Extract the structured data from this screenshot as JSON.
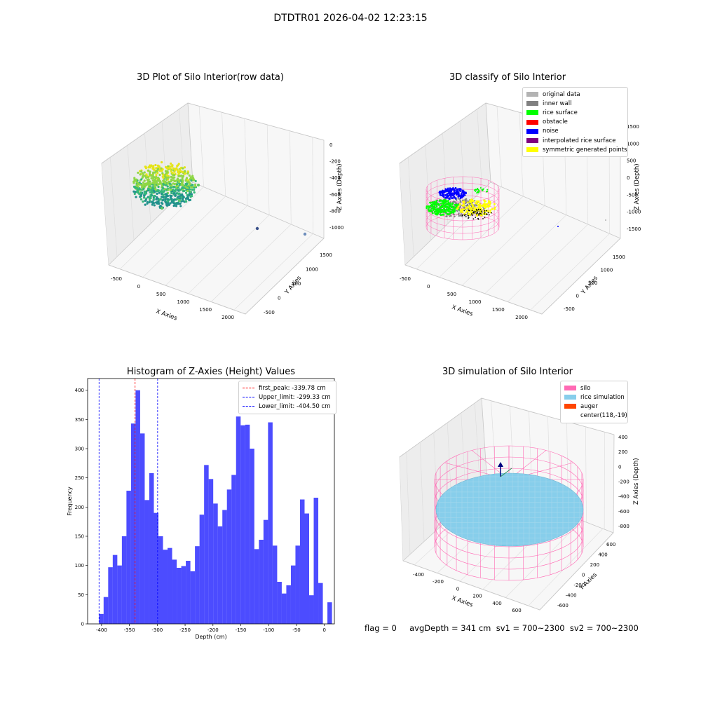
{
  "figure": {
    "suptitle": "DTDTR01 2026-04-02 12:23:15",
    "status_text": "flag = 0     avgDepth = 341 cm  sv1 = 700~2300  sv2 = 700~2300"
  },
  "panel1": {
    "title": "3D Plot of Silo Interior(row data)",
    "xlabel": "X Axies",
    "ylabel": "Y Axies",
    "zlabel": "Z Axies (Depth)",
    "xticks": [
      "-500",
      "0",
      "500",
      "1000",
      "1500",
      "2000"
    ],
    "yticks": [
      "-500",
      "0",
      "500",
      "1000",
      "1500"
    ],
    "zticks": [
      "0",
      "-200",
      "-400",
      "-600",
      "-800",
      "-1000"
    ]
  },
  "panel2": {
    "title": "3D classify of Silo Interior",
    "xlabel": "X Axies",
    "ylabel": "Y Axies",
    "zlabel": "Z Axies (Depth)",
    "xticks": [
      "-500",
      "0",
      "500",
      "1000",
      "1500",
      "2000"
    ],
    "yticks": [
      "-500",
      "0",
      "500",
      "1000",
      "1500"
    ],
    "zticks": [
      "1500",
      "1000",
      "500",
      "0",
      "-500",
      "-1000",
      "-1500"
    ],
    "legend": [
      {
        "label": "original data",
        "color": "#b3b3b3"
      },
      {
        "label": "inner wall",
        "color": "#808080"
      },
      {
        "label": "rice surface",
        "color": "#00ff00"
      },
      {
        "label": "obstacle",
        "color": "#ff0000"
      },
      {
        "label": "noise",
        "color": "#0000ff"
      },
      {
        "label": "interpolated rice surface",
        "color": "#800080"
      },
      {
        "label": "symmetric generated points",
        "color": "#ffff00"
      }
    ]
  },
  "panel4": {
    "title": "3D simulation of Silo Interior",
    "xlabel": "X Axies",
    "ylabel": "Y Axies",
    "zlabel": "Z Axies (Depth)",
    "xticks": [
      "-400",
      "-200",
      "0",
      "200",
      "400",
      "600"
    ],
    "yticks": [
      "600",
      "400",
      "200",
      "0",
      "-200",
      "-400",
      "-600"
    ],
    "zticks": [
      "400",
      "200",
      "0",
      "-200",
      "-400",
      "-600",
      "-800"
    ],
    "legend": [
      {
        "label": "silo",
        "color": "#ff69b4"
      },
      {
        "label": "rice simulation",
        "color": "#87ceeb"
      },
      {
        "label": "auger",
        "color": "#ff4500"
      },
      {
        "label": "center(118,-19)",
        "color": ""
      }
    ]
  },
  "chart_data": [
    {
      "type": "histogram",
      "title": "Histogram of Z-Axies (Height) Values",
      "xlabel": "Depth (cm)",
      "ylabel": "Frequency",
      "xlim": [
        -425,
        18
      ],
      "ylim": [
        0,
        420
      ],
      "xticks": [
        "-400",
        "-350",
        "-300",
        "-250",
        "-200",
        "-150",
        "-100",
        "-50",
        "0"
      ],
      "yticks": [
        "0",
        "50",
        "100",
        "150",
        "200",
        "250",
        "300",
        "350",
        "400"
      ],
      "bin_start": -404.5,
      "bin_width": 8.2,
      "values": [
        17,
        46,
        97,
        118,
        100,
        150,
        228,
        343,
        400,
        326,
        212,
        258,
        190,
        150,
        127,
        130,
        110,
        96,
        99,
        108,
        90,
        133,
        187,
        272,
        248,
        206,
        167,
        195,
        230,
        255,
        355,
        340,
        341,
        300,
        128,
        144,
        178,
        345,
        134,
        72,
        52,
        66,
        100,
        134,
        213,
        189,
        49,
        216,
        70,
        0,
        37
      ],
      "bar_color": "#0000ff",
      "vlines": [
        {
          "label": "first_peak: -339.78 cm",
          "x": -339.78,
          "color": "#ff0000"
        },
        {
          "label": "Upper_limit: -299.33 cm",
          "x": -299.33,
          "color": "#0000ff"
        },
        {
          "label": "Lower_limit: -404.50 cm",
          "x": -404.5,
          "color": "#0000ff"
        }
      ],
      "legend_position": "upper right"
    }
  ]
}
